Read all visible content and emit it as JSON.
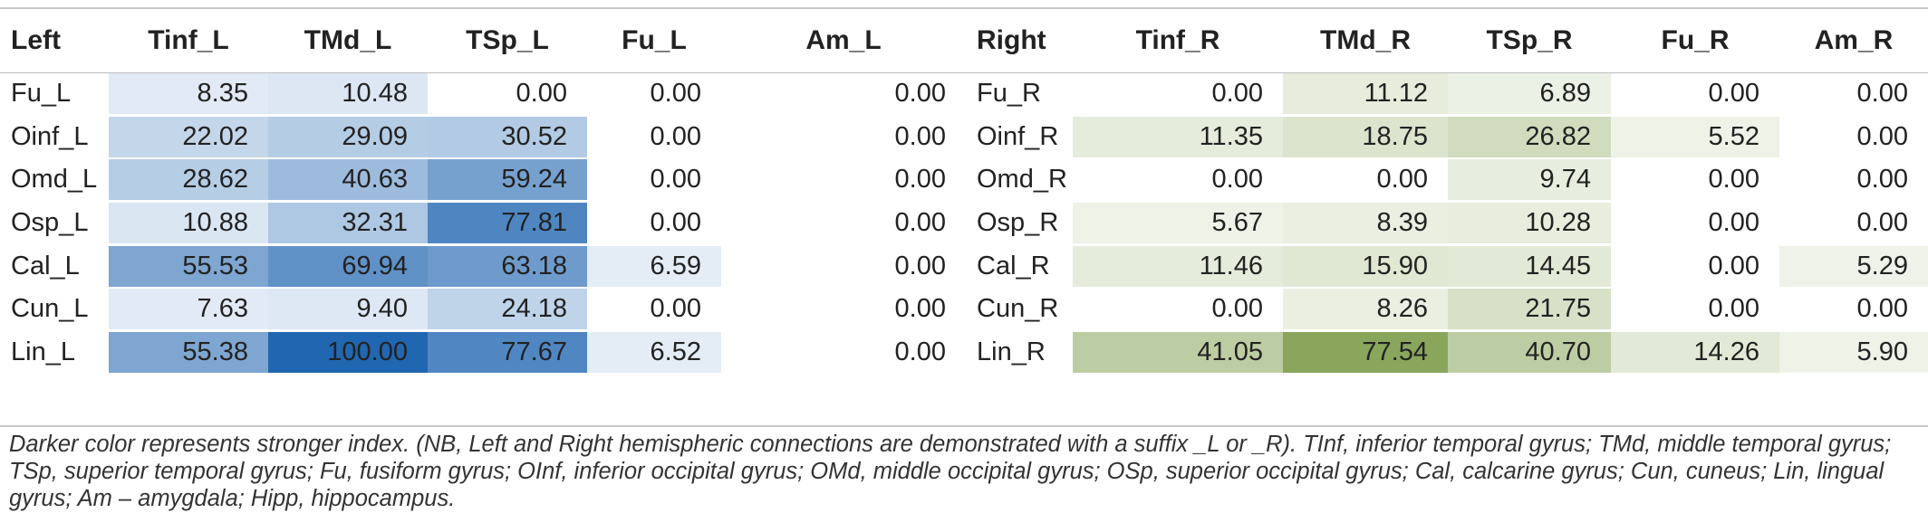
{
  "table": {
    "headers": [
      "Left",
      "Tinf_L",
      "TMd_L",
      "TSp_L",
      "Fu_L",
      "Am_L",
      "Right",
      "Tinf_R",
      "TMd_R",
      "TSp_R",
      "Fu_R",
      "Am_R"
    ],
    "rows": [
      [
        "Fu_L",
        "8.35",
        "10.48",
        "0.00",
        "0.00",
        "0.00",
        "Fu_R",
        "0.00",
        "11.12",
        "6.89",
        "0.00",
        "0.00"
      ],
      [
        "Oinf_L",
        "22.02",
        "29.09",
        "30.52",
        "0.00",
        "0.00",
        "Oinf_R",
        "11.35",
        "18.75",
        "26.82",
        "5.52",
        "0.00"
      ],
      [
        "Omd_L",
        "28.62",
        "40.63",
        "59.24",
        "0.00",
        "0.00",
        "Omd_R",
        "0.00",
        "0.00",
        "9.74",
        "0.00",
        "0.00"
      ],
      [
        "Osp_L",
        "10.88",
        "32.31",
        "77.81",
        "0.00",
        "0.00",
        "Osp_R",
        "5.67",
        "8.39",
        "10.28",
        "0.00",
        "0.00"
      ],
      [
        "Cal_L",
        "55.53",
        "69.94",
        "63.18",
        "6.59",
        "0.00",
        "Cal_R",
        "11.46",
        "15.90",
        "14.45",
        "0.00",
        "5.29"
      ],
      [
        "Cun_L",
        "7.63",
        "9.40",
        "24.18",
        "0.00",
        "0.00",
        "Cun_R",
        "0.00",
        "8.26",
        "21.75",
        "0.00",
        "0.00"
      ],
      [
        "Lin_L",
        "55.38",
        "100.00",
        "77.67",
        "6.52",
        "0.00",
        "Lin_R",
        "41.05",
        "77.54",
        "40.70",
        "14.26",
        "5.90"
      ]
    ]
  },
  "colors": {
    "left_scale_light": "#f2f6fb",
    "left_scale_dark": "#2166b0",
    "right_scale_light": "#f6f8f2",
    "right_scale_dark": "#8aa65c"
  },
  "caption": "Darker color represents stronger index. (NB, Left and Right hemispheric connections are demonstrated with a suffix _L or _R). TInf, inferior temporal gyrus; TMd, middle temporal gyrus; TSp, superior temporal gyrus; Fu, fusiform gyrus; OInf, inferior occipital gyrus; OMd, middle occipital gyrus; OSp, superior occipital gyrus; Cal, calcarine gyrus; Cun, cuneus; Lin, lingual gyrus; Am – amygdala; Hipp, hippocampus."
}
